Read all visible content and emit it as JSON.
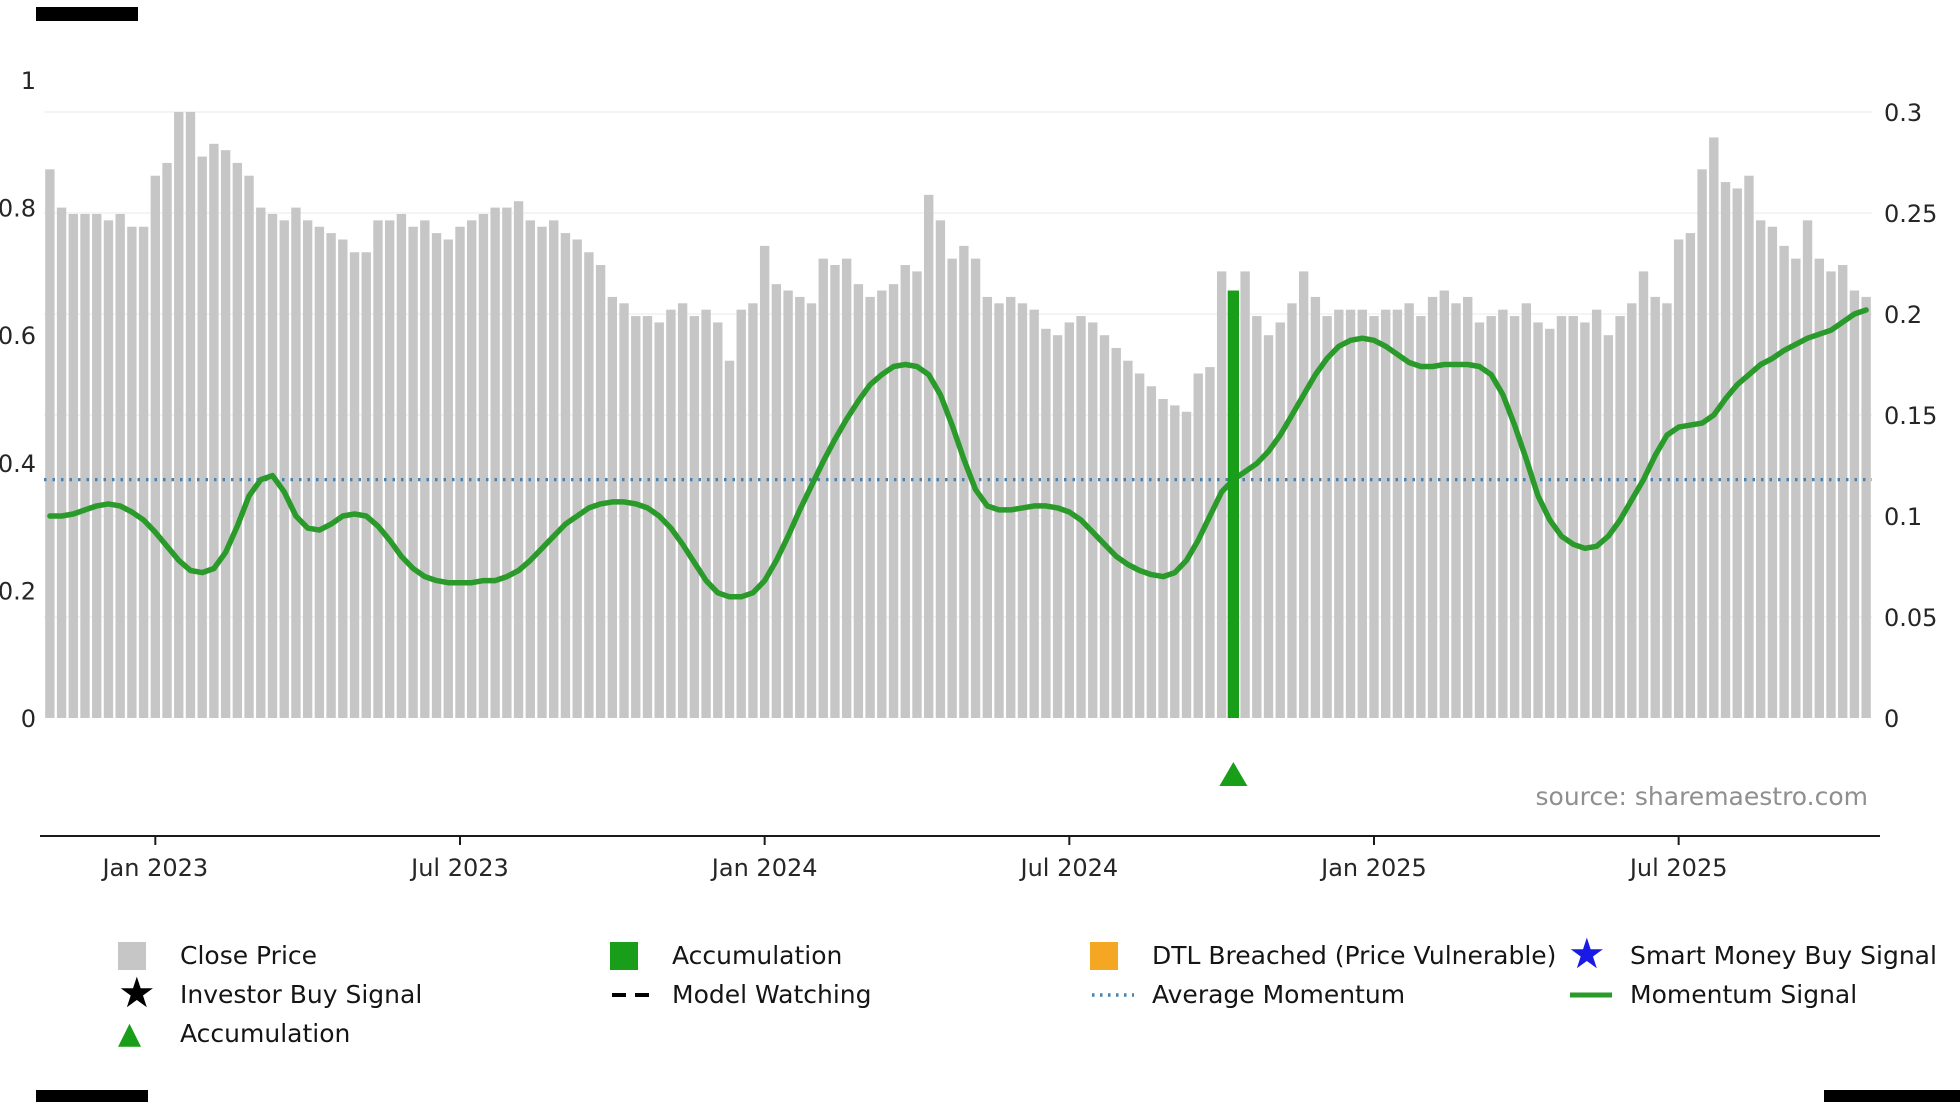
{
  "source_note": "source: sharemaestro.com",
  "colors": {
    "bar": "#c6c6c6",
    "momentum": "#2a9b2a",
    "accumulation": "#189e18",
    "average": "#4682B4",
    "dtl": "#F5A623",
    "smart_money": "#1A1AE6",
    "investor": "#000000",
    "axis_text": "#262626",
    "source_text": "#8f8f8f",
    "grid": "#ededed",
    "spine": "#1a1a1a"
  },
  "legend": {
    "close_price": "Close Price",
    "accumulation": "Accumulation",
    "dtl_breached": "DTL Breached (Price Vulnerable)",
    "smart_money": "Smart Money Buy Signal",
    "investor_buy": "Investor Buy Signal",
    "model_watching": "Model Watching",
    "average_momentum": "Average Momentum",
    "momentum_signal": "Momentum Signal",
    "accumulation_marker": "Accumulation"
  },
  "chart_data": {
    "type": "bar",
    "title": "",
    "xlabel": "",
    "ylabel": "",
    "grid": "light horizontal",
    "legend_position": "below",
    "x_axis": {
      "ticks": [
        {
          "label": "Jan 2023",
          "index": 9
        },
        {
          "label": "Jul 2023",
          "index": 35
        },
        {
          "label": "Jan 2024",
          "index": 61
        },
        {
          "label": "Jul 2024",
          "index": 87
        },
        {
          "label": "Jan 2025",
          "index": 113
        },
        {
          "label": "Jul 2025",
          "index": 139
        }
      ]
    },
    "left_axis": {
      "range": [
        0,
        1
      ],
      "ticks": [
        "0",
        "0.2",
        "0.4",
        "0.6",
        "0.8",
        "1"
      ]
    },
    "right_axis": {
      "range": [
        0,
        0.3
      ],
      "ticks": [
        "0",
        "0.05",
        "0.1",
        "0.15",
        "0.2",
        "0.25",
        "0.3"
      ]
    },
    "close_price": [
      0.86,
      0.8,
      0.79,
      0.79,
      0.79,
      0.78,
      0.79,
      0.77,
      0.77,
      0.85,
      0.87,
      0.95,
      0.95,
      0.88,
      0.9,
      0.89,
      0.87,
      0.85,
      0.8,
      0.79,
      0.78,
      0.8,
      0.78,
      0.77,
      0.76,
      0.75,
      0.73,
      0.73,
      0.78,
      0.78,
      0.79,
      0.77,
      0.78,
      0.76,
      0.75,
      0.77,
      0.78,
      0.79,
      0.8,
      0.8,
      0.81,
      0.78,
      0.77,
      0.78,
      0.76,
      0.75,
      0.73,
      0.71,
      0.66,
      0.65,
      0.63,
      0.63,
      0.62,
      0.64,
      0.65,
      0.63,
      0.64,
      0.62,
      0.56,
      0.64,
      0.65,
      0.74,
      0.68,
      0.67,
      0.66,
      0.65,
      0.72,
      0.71,
      0.72,
      0.68,
      0.66,
      0.67,
      0.68,
      0.71,
      0.7,
      0.82,
      0.78,
      0.72,
      0.74,
      0.72,
      0.66,
      0.65,
      0.66,
      0.65,
      0.64,
      0.61,
      0.6,
      0.62,
      0.63,
      0.62,
      0.6,
      0.58,
      0.56,
      0.54,
      0.52,
      0.5,
      0.49,
      0.48,
      0.54,
      0.55,
      0.7,
      0.67,
      0.7,
      0.63,
      0.6,
      0.62,
      0.65,
      0.7,
      0.66,
      0.63,
      0.64,
      0.64,
      0.64,
      0.63,
      0.64,
      0.64,
      0.65,
      0.63,
      0.66,
      0.67,
      0.65,
      0.66,
      0.62,
      0.63,
      0.64,
      0.63,
      0.65,
      0.62,
      0.61,
      0.63,
      0.63,
      0.62,
      0.64,
      0.6,
      0.63,
      0.65,
      0.7,
      0.66,
      0.65,
      0.75,
      0.76,
      0.86,
      0.91,
      0.84,
      0.83,
      0.85,
      0.78,
      0.77,
      0.74,
      0.72,
      0.78,
      0.72,
      0.7,
      0.71,
      0.67,
      0.66
    ],
    "momentum_signal": [
      0.1,
      0.1,
      0.101,
      0.103,
      0.105,
      0.106,
      0.105,
      0.102,
      0.098,
      0.092,
      0.085,
      0.078,
      0.073,
      0.072,
      0.074,
      0.082,
      0.095,
      0.11,
      0.118,
      0.12,
      0.112,
      0.1,
      0.094,
      0.093,
      0.096,
      0.1,
      0.101,
      0.1,
      0.095,
      0.088,
      0.08,
      0.074,
      0.07,
      0.068,
      0.067,
      0.067,
      0.067,
      0.068,
      0.068,
      0.07,
      0.073,
      0.078,
      0.084,
      0.09,
      0.096,
      0.1,
      0.104,
      0.106,
      0.107,
      0.107,
      0.106,
      0.104,
      0.1,
      0.094,
      0.086,
      0.077,
      0.068,
      0.062,
      0.06,
      0.06,
      0.062,
      0.068,
      0.078,
      0.09,
      0.103,
      0.115,
      0.127,
      0.138,
      0.148,
      0.157,
      0.165,
      0.17,
      0.174,
      0.175,
      0.174,
      0.17,
      0.16,
      0.145,
      0.128,
      0.113,
      0.105,
      0.103,
      0.103,
      0.104,
      0.105,
      0.105,
      0.104,
      0.102,
      0.098,
      0.092,
      0.086,
      0.08,
      0.076,
      0.073,
      0.071,
      0.07,
      0.072,
      0.078,
      0.088,
      0.1,
      0.112,
      0.118,
      0.122,
      0.126,
      0.132,
      0.14,
      0.15,
      0.16,
      0.17,
      0.178,
      0.184,
      0.187,
      0.188,
      0.187,
      0.184,
      0.18,
      0.176,
      0.174,
      0.174,
      0.175,
      0.175,
      0.175,
      0.174,
      0.17,
      0.16,
      0.145,
      0.128,
      0.11,
      0.098,
      0.09,
      0.086,
      0.084,
      0.085,
      0.09,
      0.098,
      0.108,
      0.118,
      0.13,
      0.14,
      0.144,
      0.145,
      0.146,
      0.15,
      0.158,
      0.165,
      0.17,
      0.175,
      0.178,
      0.182,
      0.185,
      0.188,
      0.19,
      0.192,
      0.196,
      0.2,
      0.202
    ],
    "average_momentum": 0.118,
    "accumulation": {
      "bar_index": 101,
      "bar_value": 0.67,
      "marker_index": 101
    }
  }
}
